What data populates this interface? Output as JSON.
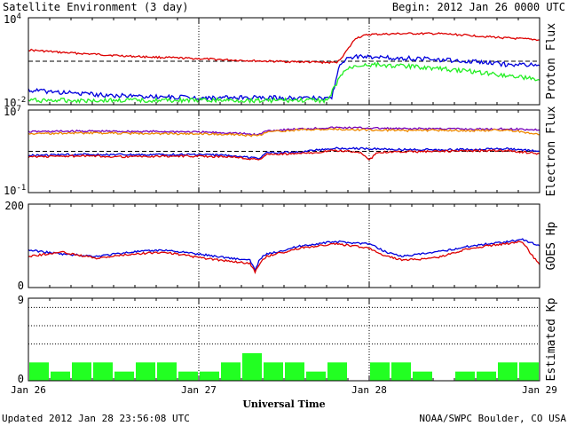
{
  "header": {
    "title": "Satellite Environment (3 day)",
    "begin": "Begin:  2012 Jan 26 0000 UTC"
  },
  "footer": {
    "updated": "Updated 2012 Jan 28 23:56:08 UTC",
    "credit": "NOAA/SWPC Boulder, CO USA"
  },
  "colors": {
    "red": "#dd0000",
    "blue": "#0000dd",
    "green": "#22ee22",
    "orange": "#ee8800",
    "purple": "#7700bb",
    "kp_bar": "#22ff22"
  },
  "chart_data": [
    {
      "type": "line",
      "id": "proton",
      "ylabel": "Proton Flux",
      "scale": "log",
      "ylim": [
        0.01,
        10000
      ],
      "yticks": [
        {
          "value": 10000,
          "base": "10",
          "exp": "4"
        },
        {
          "value": 0.01,
          "base": "10",
          "exp": "-2"
        }
      ],
      "threshold": 10,
      "x_unit": "days from 2012 Jan 26 0000 UTC",
      "series": [
        {
          "color": "red",
          "x": [
            0,
            0.2,
            0.4,
            0.6,
            0.8,
            1.0,
            1.2,
            1.4,
            1.6,
            1.8,
            1.82,
            1.88,
            1.92,
            2.0,
            2.2,
            2.4,
            2.6,
            2.8,
            3.0
          ],
          "values": [
            60,
            40,
            30,
            22,
            18,
            15,
            12,
            10,
            9,
            8,
            10,
            80,
            400,
            700,
            800,
            800,
            600,
            400,
            300
          ]
        },
        {
          "color": "blue",
          "x": [
            0,
            0.2,
            0.4,
            0.6,
            0.8,
            1.0,
            1.2,
            1.4,
            1.6,
            1.78,
            1.82,
            1.86,
            1.9,
            2.0,
            2.3,
            2.6,
            2.8,
            3.0
          ],
          "values": [
            0.1,
            0.07,
            0.05,
            0.04,
            0.035,
            0.03,
            0.03,
            0.03,
            0.03,
            0.03,
            3,
            15,
            20,
            20,
            15,
            10,
            6,
            5
          ]
        },
        {
          "color": "green",
          "x": [
            0,
            0.2,
            0.5,
            1.0,
            1.5,
            1.76,
            1.8,
            1.85,
            1.92,
            2.0,
            2.3,
            2.6,
            2.9,
            3.0
          ],
          "values": [
            0.02,
            0.02,
            0.02,
            0.02,
            0.02,
            0.02,
            0.2,
            2,
            5,
            6,
            4,
            2,
            0.8,
            0.5
          ]
        }
      ]
    },
    {
      "type": "line",
      "id": "electron",
      "ylabel": "Electron Flux",
      "scale": "log",
      "ylim": [
        0.1,
        10000000
      ],
      "yticks": [
        {
          "value": 10000000,
          "base": "10",
          "exp": "7"
        },
        {
          "value": 0.1,
          "base": "10",
          "exp": "-1"
        }
      ],
      "threshold": 1000,
      "x_unit": "days from 2012 Jan 26 0000 UTC",
      "series": [
        {
          "color": "purple",
          "x": [
            0,
            0.3,
            0.6,
            0.9,
            1.2,
            1.35,
            1.4,
            1.6,
            1.8,
            2.0,
            2.2,
            2.4,
            2.6,
            2.8,
            3.0
          ],
          "values": [
            80000,
            90000,
            85000,
            80000,
            60000,
            40000,
            100000,
            150000,
            200000,
            180000,
            150000,
            160000,
            140000,
            150000,
            120000
          ]
        },
        {
          "color": "orange",
          "x": [
            0,
            0.3,
            0.6,
            0.9,
            1.2,
            1.35,
            1.4,
            1.6,
            1.8,
            2.0,
            2.2,
            2.4,
            2.6,
            2.8,
            2.95,
            3.0
          ],
          "values": [
            50000,
            60000,
            55000,
            50000,
            45000,
            30000,
            80000,
            120000,
            140000,
            120000,
            100000,
            110000,
            100000,
            120000,
            60000,
            40000
          ]
        },
        {
          "color": "blue",
          "x": [
            0,
            0.3,
            0.6,
            0.9,
            1.2,
            1.35,
            1.4,
            1.6,
            1.8,
            2.0,
            2.2,
            2.4,
            2.6,
            2.8,
            3.0
          ],
          "values": [
            400,
            500,
            450,
            500,
            400,
            200,
            700,
            900,
            2000,
            1800,
            1500,
            1400,
            1500,
            1800,
            1000
          ]
        },
        {
          "color": "red",
          "x": [
            0,
            0.3,
            0.6,
            0.9,
            1.2,
            1.35,
            1.4,
            1.6,
            1.8,
            1.95,
            2.0,
            2.05,
            2.2,
            2.4,
            2.6,
            2.8,
            3.0
          ],
          "values": [
            300,
            350,
            300,
            350,
            300,
            150,
            500,
            600,
            1200,
            800,
            150,
            800,
            900,
            1000,
            1100,
            1200,
            600
          ]
        }
      ]
    },
    {
      "type": "line",
      "id": "hp",
      "ylabel": "GOES Hp",
      "scale": "linear",
      "ylim": [
        0,
        200
      ],
      "yticks": [
        {
          "value": 200,
          "label": "200"
        },
        {
          "value": 0,
          "label": "0"
        }
      ],
      "x_unit": "days from 2012 Jan 26 0000 UTC",
      "series": [
        {
          "color": "blue",
          "x": [
            0,
            0.2,
            0.4,
            0.6,
            0.8,
            1.0,
            1.2,
            1.3,
            1.33,
            1.36,
            1.4,
            1.6,
            1.8,
            2.0,
            2.1,
            2.2,
            2.4,
            2.6,
            2.8,
            2.9,
            3.0
          ],
          "values": [
            90,
            80,
            75,
            85,
            90,
            80,
            70,
            65,
            42,
            70,
            80,
            100,
            110,
            105,
            85,
            75,
            85,
            100,
            110,
            115,
            100
          ]
        },
        {
          "color": "red",
          "x": [
            0,
            0.2,
            0.4,
            0.6,
            0.8,
            1.0,
            1.2,
            1.3,
            1.33,
            1.36,
            1.4,
            1.6,
            1.8,
            2.0,
            2.1,
            2.2,
            2.4,
            2.6,
            2.8,
            2.9,
            2.95,
            3.0
          ],
          "values": [
            75,
            85,
            70,
            80,
            85,
            72,
            62,
            58,
            38,
            60,
            75,
            95,
            105,
            95,
            75,
            65,
            72,
            95,
            105,
            110,
            80,
            55
          ]
        }
      ]
    },
    {
      "type": "bar",
      "id": "kp",
      "ylabel": "Estimated Kp",
      "ylim": [
        0,
        9
      ],
      "yticks": [
        {
          "value": 9,
          "label": "9"
        },
        {
          "value": 0,
          "label": "0"
        }
      ],
      "values": [
        2,
        1,
        2,
        2,
        1,
        2,
        2,
        1,
        1,
        2,
        3,
        2,
        2,
        1,
        2,
        0,
        2,
        2,
        1,
        0,
        1,
        1,
        2,
        2
      ]
    }
  ],
  "x_axis": {
    "title": "Universal Time",
    "ticks": [
      {
        "x": 0,
        "label": "Jan 26"
      },
      {
        "x": 1,
        "label": "Jan 27"
      },
      {
        "x": 2,
        "label": "Jan 28"
      },
      {
        "x": 3,
        "label": "Jan 29"
      }
    ]
  }
}
